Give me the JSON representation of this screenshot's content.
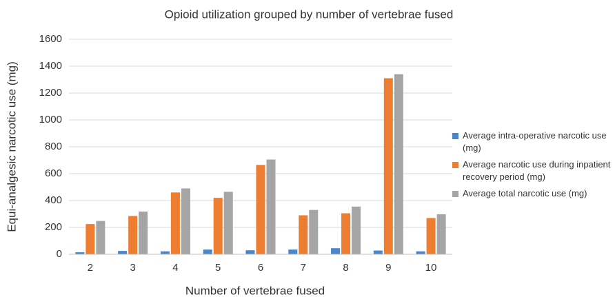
{
  "chart_data": {
    "type": "bar",
    "title": "Opioid utilization grouped by number of vertebrae fused",
    "x_label": "Number of vertebrae fused",
    "y_label": "Equi-analgesic narcotic use (mg)",
    "categories": [
      "2",
      "3",
      "4",
      "5",
      "6",
      "7",
      "8",
      "9",
      "10"
    ],
    "series": [
      {
        "name": "Average intra-operative narcotic use (mg)",
        "color": "#4a86c8",
        "values": [
          15,
          25,
          22,
          35,
          30,
          35,
          45,
          28,
          22
        ]
      },
      {
        "name": "Average narcotic use during inpatient recovery period (mg)",
        "color": "#ed7d31",
        "values": [
          225,
          285,
          460,
          420,
          665,
          290,
          305,
          1310,
          270
        ]
      },
      {
        "name": "Average total narcotic use (mg)",
        "color": "#a5a5a5",
        "values": [
          248,
          318,
          490,
          465,
          705,
          330,
          355,
          1340,
          298
        ]
      }
    ],
    "ylim": [
      0,
      1600
    ],
    "yticks": [
      0,
      200,
      400,
      600,
      800,
      1000,
      1200,
      1400,
      1600
    ],
    "grid": true,
    "legend": "right"
  }
}
